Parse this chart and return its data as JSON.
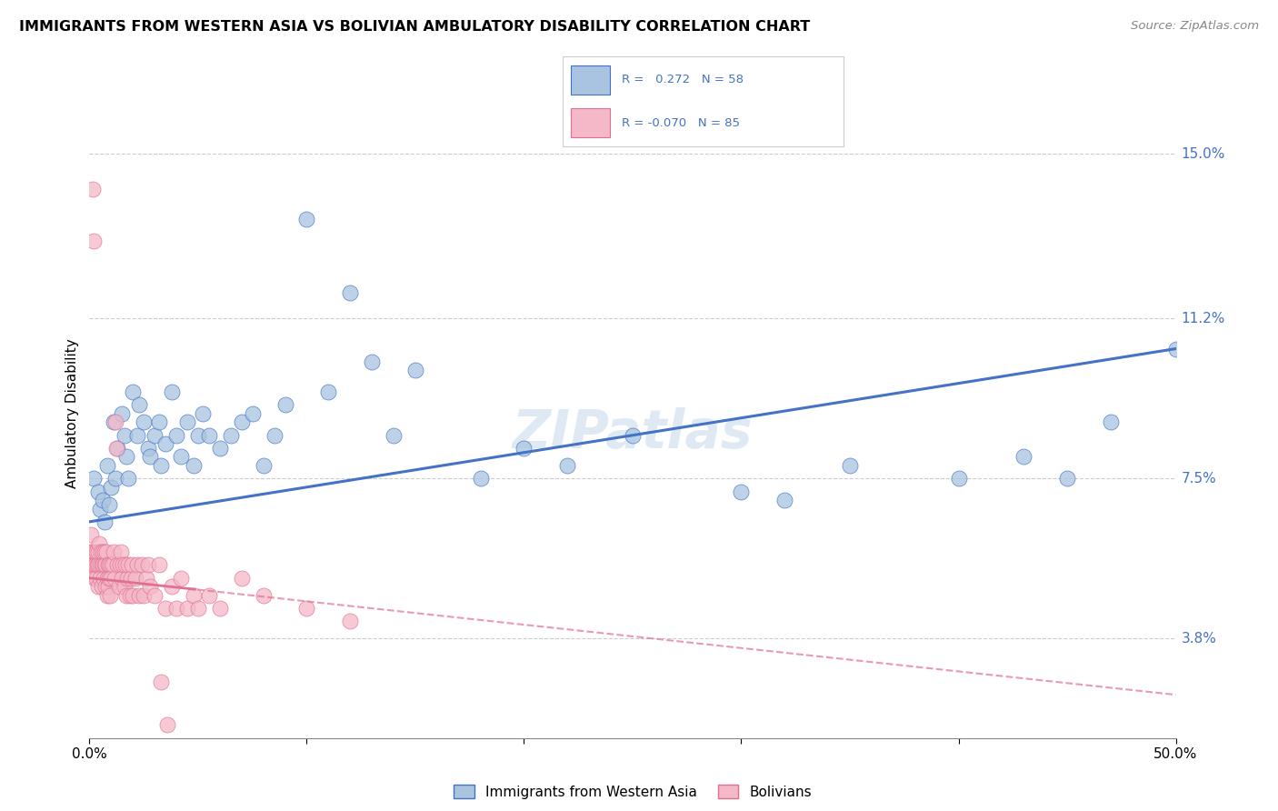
{
  "title": "IMMIGRANTS FROM WESTERN ASIA VS BOLIVIAN AMBULATORY DISABILITY CORRELATION CHART",
  "source": "Source: ZipAtlas.com",
  "ylabel": "Ambulatory Disability",
  "yticks": [
    3.8,
    7.5,
    11.2,
    15.0
  ],
  "ytick_labels": [
    "3.8%",
    "7.5%",
    "11.2%",
    "15.0%"
  ],
  "xmin": 0.0,
  "xmax": 50.0,
  "ymin": 1.5,
  "ymax": 16.5,
  "watermark": "ZIPatlas",
  "blue_color": "#a8c4e0",
  "pink_color": "#f4b8c8",
  "line_blue": "#4472c4",
  "line_pink": "#e07090",
  "text_blue": "#4472c4",
  "background": "#ffffff",
  "grid_color": "#cccccc",
  "blue_scatter": [
    [
      0.2,
      7.5
    ],
    [
      0.4,
      7.2
    ],
    [
      0.5,
      6.8
    ],
    [
      0.6,
      7.0
    ],
    [
      0.7,
      6.5
    ],
    [
      0.8,
      7.8
    ],
    [
      0.9,
      6.9
    ],
    [
      1.0,
      7.3
    ],
    [
      1.1,
      8.8
    ],
    [
      1.2,
      7.5
    ],
    [
      1.3,
      8.2
    ],
    [
      1.5,
      9.0
    ],
    [
      1.6,
      8.5
    ],
    [
      1.7,
      8.0
    ],
    [
      1.8,
      7.5
    ],
    [
      2.0,
      9.5
    ],
    [
      2.2,
      8.5
    ],
    [
      2.3,
      9.2
    ],
    [
      2.5,
      8.8
    ],
    [
      2.7,
      8.2
    ],
    [
      2.8,
      8.0
    ],
    [
      3.0,
      8.5
    ],
    [
      3.2,
      8.8
    ],
    [
      3.3,
      7.8
    ],
    [
      3.5,
      8.3
    ],
    [
      3.8,
      9.5
    ],
    [
      4.0,
      8.5
    ],
    [
      4.2,
      8.0
    ],
    [
      4.5,
      8.8
    ],
    [
      4.8,
      7.8
    ],
    [
      5.0,
      8.5
    ],
    [
      5.2,
      9.0
    ],
    [
      5.5,
      8.5
    ],
    [
      6.0,
      8.2
    ],
    [
      6.5,
      8.5
    ],
    [
      7.0,
      8.8
    ],
    [
      7.5,
      9.0
    ],
    [
      8.0,
      7.8
    ],
    [
      8.5,
      8.5
    ],
    [
      9.0,
      9.2
    ],
    [
      10.0,
      13.5
    ],
    [
      11.0,
      9.5
    ],
    [
      12.0,
      11.8
    ],
    [
      13.0,
      10.2
    ],
    [
      14.0,
      8.5
    ],
    [
      15.0,
      10.0
    ],
    [
      18.0,
      7.5
    ],
    [
      20.0,
      8.2
    ],
    [
      22.0,
      7.8
    ],
    [
      25.0,
      8.5
    ],
    [
      30.0,
      7.2
    ],
    [
      32.0,
      7.0
    ],
    [
      35.0,
      7.8
    ],
    [
      40.0,
      7.5
    ],
    [
      43.0,
      8.0
    ],
    [
      45.0,
      7.5
    ],
    [
      47.0,
      8.8
    ],
    [
      50.0,
      10.5
    ]
  ],
  "pink_scatter": [
    [
      0.05,
      5.8
    ],
    [
      0.08,
      6.2
    ],
    [
      0.1,
      5.5
    ],
    [
      0.12,
      5.8
    ],
    [
      0.15,
      14.2
    ],
    [
      0.18,
      13.0
    ],
    [
      0.2,
      5.5
    ],
    [
      0.22,
      5.2
    ],
    [
      0.25,
      5.8
    ],
    [
      0.28,
      5.5
    ],
    [
      0.3,
      5.2
    ],
    [
      0.32,
      5.8
    ],
    [
      0.35,
      5.5
    ],
    [
      0.38,
      5.0
    ],
    [
      0.4,
      5.5
    ],
    [
      0.42,
      5.8
    ],
    [
      0.45,
      6.0
    ],
    [
      0.48,
      5.5
    ],
    [
      0.5,
      5.2
    ],
    [
      0.52,
      5.8
    ],
    [
      0.55,
      5.5
    ],
    [
      0.58,
      5.0
    ],
    [
      0.6,
      5.5
    ],
    [
      0.62,
      5.8
    ],
    [
      0.65,
      5.2
    ],
    [
      0.68,
      5.5
    ],
    [
      0.7,
      5.8
    ],
    [
      0.72,
      5.0
    ],
    [
      0.75,
      5.5
    ],
    [
      0.78,
      5.8
    ],
    [
      0.8,
      5.2
    ],
    [
      0.82,
      4.8
    ],
    [
      0.85,
      5.5
    ],
    [
      0.88,
      5.0
    ],
    [
      0.9,
      5.5
    ],
    [
      0.92,
      5.2
    ],
    [
      0.95,
      4.8
    ],
    [
      0.98,
      5.5
    ],
    [
      1.0,
      5.2
    ],
    [
      1.05,
      5.5
    ],
    [
      1.1,
      5.8
    ],
    [
      1.15,
      5.2
    ],
    [
      1.2,
      8.8
    ],
    [
      1.25,
      8.2
    ],
    [
      1.3,
      5.5
    ],
    [
      1.35,
      5.0
    ],
    [
      1.4,
      5.5
    ],
    [
      1.45,
      5.8
    ],
    [
      1.5,
      5.2
    ],
    [
      1.55,
      5.5
    ],
    [
      1.6,
      5.0
    ],
    [
      1.65,
      5.5
    ],
    [
      1.7,
      4.8
    ],
    [
      1.75,
      5.2
    ],
    [
      1.8,
      5.5
    ],
    [
      1.85,
      4.8
    ],
    [
      1.9,
      5.2
    ],
    [
      1.95,
      5.5
    ],
    [
      2.0,
      4.8
    ],
    [
      2.1,
      5.2
    ],
    [
      2.2,
      5.5
    ],
    [
      2.3,
      4.8
    ],
    [
      2.4,
      5.5
    ],
    [
      2.5,
      4.8
    ],
    [
      2.6,
      5.2
    ],
    [
      2.7,
      5.5
    ],
    [
      2.8,
      5.0
    ],
    [
      3.0,
      4.8
    ],
    [
      3.2,
      5.5
    ],
    [
      3.5,
      4.5
    ],
    [
      3.8,
      5.0
    ],
    [
      4.0,
      4.5
    ],
    [
      4.2,
      5.2
    ],
    [
      4.5,
      4.5
    ],
    [
      4.8,
      4.8
    ],
    [
      5.0,
      4.5
    ],
    [
      5.5,
      4.8
    ],
    [
      6.0,
      4.5
    ],
    [
      7.0,
      5.2
    ],
    [
      8.0,
      4.8
    ],
    [
      10.0,
      4.5
    ],
    [
      12.0,
      4.2
    ],
    [
      3.3,
      2.8
    ],
    [
      3.6,
      1.8
    ]
  ]
}
